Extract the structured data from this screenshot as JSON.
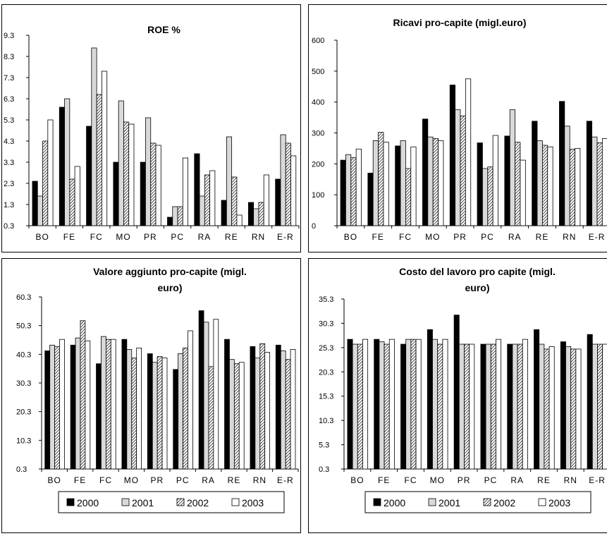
{
  "chart_data": [
    {
      "type": "bar",
      "title": [
        "ROE %"
      ],
      "categories": [
        "BO",
        "FE",
        "FC",
        "MO",
        "PR",
        "PC",
        "RA",
        "RE",
        "RN",
        "E-R"
      ],
      "yticks": [
        "0.3",
        "1.3",
        "2.3",
        "3.3",
        "4.3",
        "5.3",
        "6.3",
        "7.3",
        "8.3",
        "9.3"
      ],
      "ylim": [
        0.3,
        9.3
      ],
      "series": [
        {
          "name": "2000",
          "values": [
            2.4,
            5.9,
            5.0,
            3.3,
            3.3,
            0.7,
            3.7,
            1.5,
            1.4,
            2.5
          ]
        },
        {
          "name": "2001",
          "values": [
            1.7,
            6.3,
            8.7,
            6.2,
            5.4,
            1.2,
            1.7,
            4.5,
            1.1,
            4.6
          ]
        },
        {
          "name": "2002",
          "values": [
            4.3,
            2.5,
            6.5,
            5.2,
            4.2,
            1.2,
            2.7,
            2.6,
            1.4,
            4.2
          ]
        },
        {
          "name": "2003",
          "values": [
            5.3,
            3.1,
            7.6,
            5.1,
            4.1,
            3.5,
            2.9,
            0.8,
            2.7,
            3.6
          ]
        }
      ]
    },
    {
      "type": "bar",
      "title": [
        "Ricavi pro-capite (migl.euro)"
      ],
      "categories": [
        "BO",
        "FE",
        "FC",
        "MO",
        "PR",
        "PC",
        "RA",
        "RE",
        "RN",
        "E-R"
      ],
      "yticks": [
        "0",
        "100",
        "200",
        "300",
        "400",
        "500",
        "600"
      ],
      "ylim": [
        0,
        600
      ],
      "series": [
        {
          "name": "2000",
          "values": [
            212,
            170,
            258,
            345,
            455,
            268,
            290,
            338,
            402,
            338
          ]
        },
        {
          "name": "2001",
          "values": [
            230,
            275,
            275,
            287,
            375,
            185,
            375,
            275,
            322,
            287
          ]
        },
        {
          "name": "2002",
          "values": [
            220,
            302,
            185,
            282,
            355,
            190,
            270,
            260,
            247,
            268
          ]
        },
        {
          "name": "2003",
          "values": [
            248,
            270,
            255,
            275,
            475,
            292,
            212,
            255,
            250,
            282
          ]
        }
      ]
    },
    {
      "type": "bar",
      "title": [
        "Valore aggiunto pro-capite (migl.",
        "euro)"
      ],
      "categories": [
        "BO",
        "FE",
        "FC",
        "MO",
        "PR",
        "PC",
        "RA",
        "RE",
        "RN",
        "E-R"
      ],
      "yticks": [
        "0.3",
        "10.3",
        "20.3",
        "30.3",
        "40.3",
        "50.3",
        "60.3"
      ],
      "ylim": [
        0.3,
        60.3
      ],
      "series": [
        {
          "name": "2000",
          "values": [
            41.5,
            43.5,
            37.0,
            45.5,
            40.5,
            35.0,
            55.5,
            45.5,
            43.0,
            43.5
          ]
        },
        {
          "name": "2001",
          "values": [
            43.5,
            46.0,
            46.5,
            42.0,
            37.5,
            40.5,
            51.5,
            38.5,
            39.0,
            41.5
          ]
        },
        {
          "name": "2002",
          "values": [
            43.0,
            52.0,
            45.5,
            39.0,
            39.5,
            42.5,
            36.0,
            37.0,
            44.0,
            38.5
          ]
        },
        {
          "name": "2003",
          "values": [
            45.5,
            45.0,
            45.5,
            42.5,
            39.0,
            48.5,
            52.5,
            37.5,
            41.0,
            42.0
          ]
        }
      ]
    },
    {
      "type": "bar",
      "title": [
        "Costo del lavoro  pro capite (migl.",
        "euro)"
      ],
      "categories": [
        "BO",
        "FE",
        "FC",
        "MO",
        "PR",
        "PC",
        "RA",
        "RE",
        "RN",
        "E-R"
      ],
      "yticks": [
        "0.3",
        "5.3",
        "10.3",
        "15.3",
        "20.3",
        "25.3",
        "30.3",
        "35.3"
      ],
      "ylim": [
        0.3,
        35.3
      ],
      "series": [
        {
          "name": "2000",
          "values": [
            27.0,
            27.0,
            26.0,
            29.0,
            32.0,
            26.0,
            26.0,
            29.0,
            26.5,
            28.0
          ]
        },
        {
          "name": "2001",
          "values": [
            26.0,
            26.5,
            27.0,
            27.0,
            26.0,
            26.0,
            26.0,
            26.0,
            25.5,
            26.0
          ]
        },
        {
          "name": "2002",
          "values": [
            26.0,
            26.0,
            27.0,
            26.0,
            26.0,
            26.0,
            26.0,
            25.0,
            25.0,
            26.0
          ]
        },
        {
          "name": "2003",
          "values": [
            27.0,
            27.0,
            27.0,
            27.0,
            26.0,
            27.0,
            27.0,
            25.5,
            25.0,
            26.0
          ]
        }
      ]
    }
  ],
  "legend": {
    "fills": [
      "#000000",
      "#d9d9d9",
      "pattern",
      "#ffffff"
    ]
  },
  "colors": {
    "series": [
      "#000000",
      "#d9d9d9",
      "hatch",
      "#ffffff"
    ],
    "axis": "#000000"
  }
}
